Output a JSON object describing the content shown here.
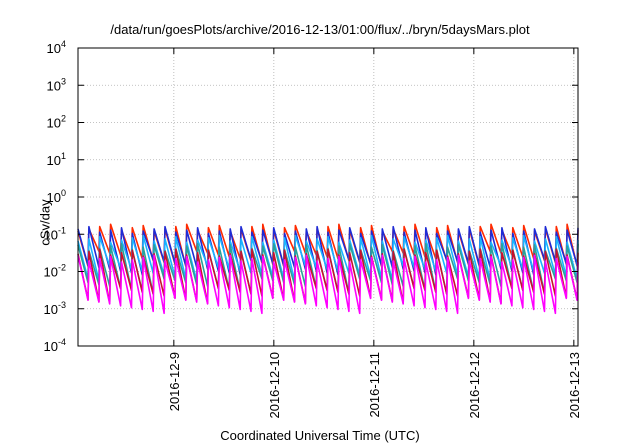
{
  "chart_data": {
    "type": "line",
    "title": "/data/run/goesPlots/archive/2016-12-13/01:00/flux/../bryn/5daysMars.plot",
    "xlabel": "Coordinated Universal Time (UTC)",
    "ylabel": "cSv/day",
    "yscale": "log",
    "ylim": [
      0.0001,
      10000
    ],
    "yticks": [
      {
        "value": 0.0001,
        "base": "10",
        "exp": "-4"
      },
      {
        "value": 0.001,
        "base": "10",
        "exp": "-3"
      },
      {
        "value": 0.01,
        "base": "10",
        "exp": "-2"
      },
      {
        "value": 0.1,
        "base": "10",
        "exp": "-1"
      },
      {
        "value": 1,
        "base": "10",
        "exp": "0"
      },
      {
        "value": 10,
        "base": "10",
        "exp": "1"
      },
      {
        "value": 100,
        "base": "10",
        "exp": "2"
      },
      {
        "value": 1000,
        "base": "10",
        "exp": "3"
      },
      {
        "value": 10000,
        "base": "10",
        "exp": "4"
      }
    ],
    "xlim": [
      "2016-12-08 01:00",
      "2016-12-13 01:00"
    ],
    "xticks": [
      "2016-12-9",
      "2016-12-10",
      "2016-12-11",
      "2016-12-12",
      "2016-12-13"
    ],
    "grid": true,
    "sawtooth_periods": 46,
    "series": [
      {
        "color": "#ff2a00",
        "peak": 0.15,
        "trough": 0.022
      },
      {
        "color": "#1e2bd6",
        "peak": 0.13,
        "trough": 0.013
      },
      {
        "color": "#19b4ff",
        "peak": 0.075,
        "trough": 0.009
      },
      {
        "color": "#2aa198",
        "peak": 0.045,
        "trough": 0.004
      },
      {
        "color": "#c8102e",
        "peak": 0.032,
        "trough": 0.0022
      },
      {
        "color": "#ff00ff",
        "peak": 0.022,
        "trough": 0.0012
      }
    ]
  }
}
